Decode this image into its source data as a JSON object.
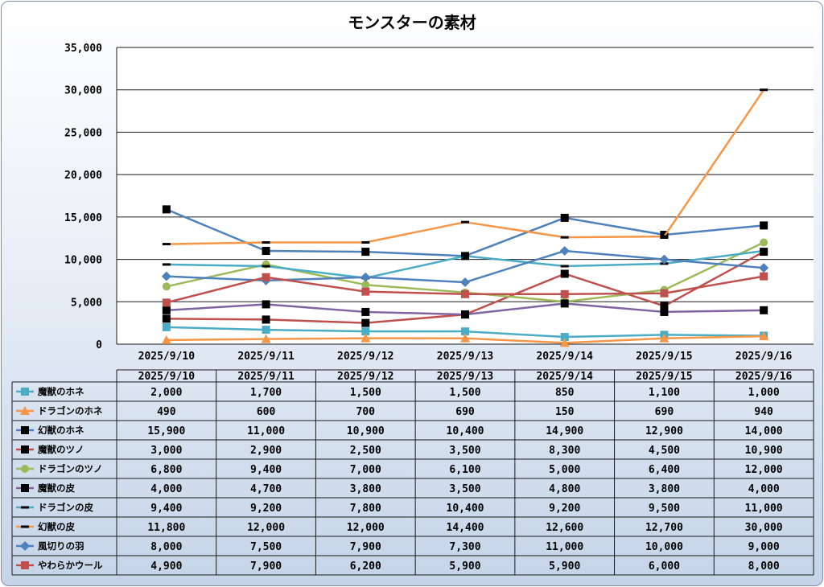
{
  "chart_data": {
    "type": "line",
    "title": "モンスターの素材",
    "xlabel": "",
    "ylabel": "",
    "categories": [
      "2025/9/10",
      "2025/9/11",
      "2025/9/12",
      "2025/9/13",
      "2025/9/14",
      "2025/9/15",
      "2025/9/16"
    ],
    "ylim": [
      0,
      35000
    ],
    "yticks": [
      0,
      5000,
      10000,
      15000,
      20000,
      25000,
      30000,
      35000
    ],
    "ytick_labels": [
      "0",
      "5,000",
      "10,000",
      "15,000",
      "20,000",
      "25,000",
      "30,000",
      "35,000"
    ],
    "grid": true,
    "legend": "data-table-below",
    "series": [
      {
        "name": "魔獣のホネ",
        "color": "#4bacc6",
        "marker": "square",
        "values": [
          2000,
          1700,
          1500,
          1500,
          850,
          1100,
          1000
        ],
        "labels": [
          "2,000",
          "1,700",
          "1,500",
          "1,500",
          "850",
          "1,100",
          "1,000"
        ]
      },
      {
        "name": "ドラゴンのホネ",
        "color": "#f79646",
        "marker": "triangle",
        "values": [
          490,
          600,
          700,
          690,
          150,
          690,
          940
        ],
        "labels": [
          "490",
          "600",
          "700",
          "690",
          "150",
          "690",
          "940"
        ]
      },
      {
        "name": "幻獣のホネ",
        "color": "#4f81bd",
        "marker": "square-black",
        "values": [
          15900,
          11000,
          10900,
          10400,
          14900,
          12900,
          14000
        ],
        "labels": [
          "15,900",
          "11,000",
          "10,900",
          "10,400",
          "14,900",
          "12,900",
          "14,000"
        ]
      },
      {
        "name": "魔獣のツノ",
        "color": "#c0504d",
        "marker": "square-black",
        "values": [
          3000,
          2900,
          2500,
          3500,
          8300,
          4500,
          10900
        ],
        "labels": [
          "3,000",
          "2,900",
          "2,500",
          "3,500",
          "8,300",
          "4,500",
          "10,900"
        ]
      },
      {
        "name": "ドラゴンのツノ",
        "color": "#9bbb59",
        "marker": "circle",
        "values": [
          6800,
          9400,
          7000,
          6100,
          5000,
          6400,
          12000
        ],
        "labels": [
          "6,800",
          "9,400",
          "7,000",
          "6,100",
          "5,000",
          "6,400",
          "12,000"
        ]
      },
      {
        "name": "魔獣の皮",
        "color": "#8064a2",
        "marker": "square-black",
        "values": [
          4000,
          4700,
          3800,
          3500,
          4800,
          3800,
          4000
        ],
        "labels": [
          "4,000",
          "4,700",
          "3,800",
          "3,500",
          "4,800",
          "3,800",
          "4,000"
        ]
      },
      {
        "name": "ドラゴンの皮",
        "color": "#4bacc6",
        "marker": "dash",
        "values": [
          9400,
          9200,
          7800,
          10400,
          9200,
          9500,
          11000
        ],
        "labels": [
          "9,400",
          "9,200",
          "7,800",
          "10,400",
          "9,200",
          "9,500",
          "11,000"
        ]
      },
      {
        "name": "幻獣の皮",
        "color": "#f79646",
        "marker": "dash",
        "values": [
          11800,
          12000,
          12000,
          14400,
          12600,
          12700,
          30000
        ],
        "labels": [
          "11,800",
          "12,000",
          "12,000",
          "14,400",
          "12,600",
          "12,700",
          "30,000"
        ]
      },
      {
        "name": "風切りの羽",
        "color": "#4f81bd",
        "marker": "diamond",
        "values": [
          8000,
          7500,
          7900,
          7300,
          11000,
          10000,
          9000
        ],
        "labels": [
          "8,000",
          "7,500",
          "7,900",
          "7,300",
          "11,000",
          "10,000",
          "9,000"
        ]
      },
      {
        "name": "やわらかウール",
        "color": "#c0504d",
        "marker": "square",
        "values": [
          4900,
          7900,
          6200,
          5900,
          5900,
          6000,
          8000
        ],
        "labels": [
          "4,900",
          "7,900",
          "6,200",
          "5,900",
          "5,900",
          "6,000",
          "8,000"
        ]
      }
    ]
  }
}
